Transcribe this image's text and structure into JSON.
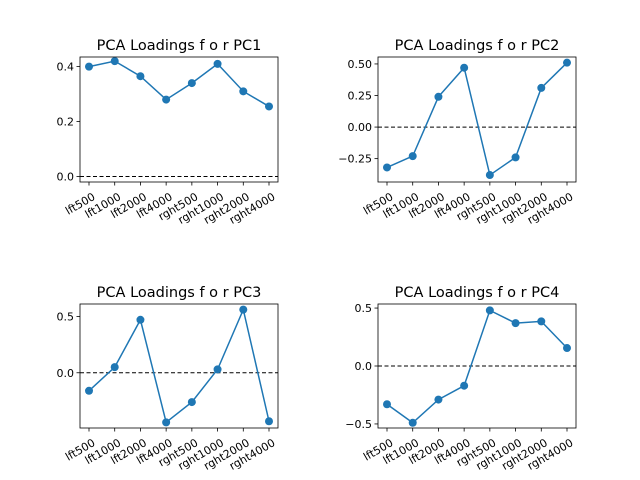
{
  "chart_data": [
    {
      "type": "line",
      "title": "PCA Loadings f o r PC1",
      "categories": [
        "lft500",
        "lft1000",
        "lft2000",
        "lft4000",
        "rght500",
        "rght1000",
        "rght2000",
        "rght4000"
      ],
      "values": [
        0.4,
        0.42,
        0.365,
        0.28,
        0.34,
        0.41,
        0.31,
        0.255
      ],
      "ylim": [
        -0.02,
        0.435
      ],
      "yticks": [
        0.0,
        0.2,
        0.4
      ],
      "ytick_labels": [
        "0.0",
        "0.2",
        "0.4"
      ],
      "reference_line": 0,
      "xlabel": "",
      "ylabel": ""
    },
    {
      "type": "line",
      "title": "PCA Loadings f o r PC2",
      "categories": [
        "lft500",
        "lft1000",
        "lft2000",
        "lft4000",
        "rght500",
        "rght1000",
        "rght2000",
        "rght4000"
      ],
      "values": [
        -0.32,
        -0.23,
        0.24,
        0.47,
        -0.38,
        -0.24,
        0.31,
        0.51
      ],
      "ylim": [
        -0.435,
        0.555
      ],
      "yticks": [
        -0.25,
        0.0,
        0.25,
        0.5
      ],
      "ytick_labels": [
        "−0.25",
        "0.00",
        "0.25",
        "0.50"
      ],
      "reference_line": 0,
      "xlabel": "",
      "ylabel": ""
    },
    {
      "type": "line",
      "title": "PCA Loadings f o r PC3",
      "categories": [
        "lft500",
        "lft1000",
        "lft2000",
        "lft4000",
        "rght500",
        "rght1000",
        "rght2000",
        "rght4000"
      ],
      "values": [
        -0.16,
        0.05,
        0.47,
        -0.44,
        -0.26,
        0.03,
        0.56,
        -0.43
      ],
      "ylim": [
        -0.49,
        0.61
      ],
      "yticks": [
        0.0,
        0.5
      ],
      "ytick_labels": [
        "0.0",
        "0.5"
      ],
      "reference_line": 0,
      "xlabel": "",
      "ylabel": ""
    },
    {
      "type": "line",
      "title": "PCA Loadings f o r PC4",
      "categories": [
        "lft500",
        "lft1000",
        "lft2000",
        "lft4000",
        "rght500",
        "rght1000",
        "rght2000",
        "rght4000"
      ],
      "values": [
        -0.33,
        -0.49,
        -0.29,
        -0.17,
        0.48,
        0.37,
        0.385,
        0.155
      ],
      "ylim": [
        -0.535,
        0.535
      ],
      "yticks": [
        -0.5,
        0.0,
        0.5
      ],
      "ytick_labels": [
        "−0.5",
        "0.0",
        "0.5"
      ],
      "reference_line": 0,
      "xlabel": "",
      "ylabel": ""
    }
  ],
  "colors": {
    "line": "#1f77b4",
    "marker": "#1f77b4",
    "reference": "#000000",
    "axes": "#000000"
  }
}
